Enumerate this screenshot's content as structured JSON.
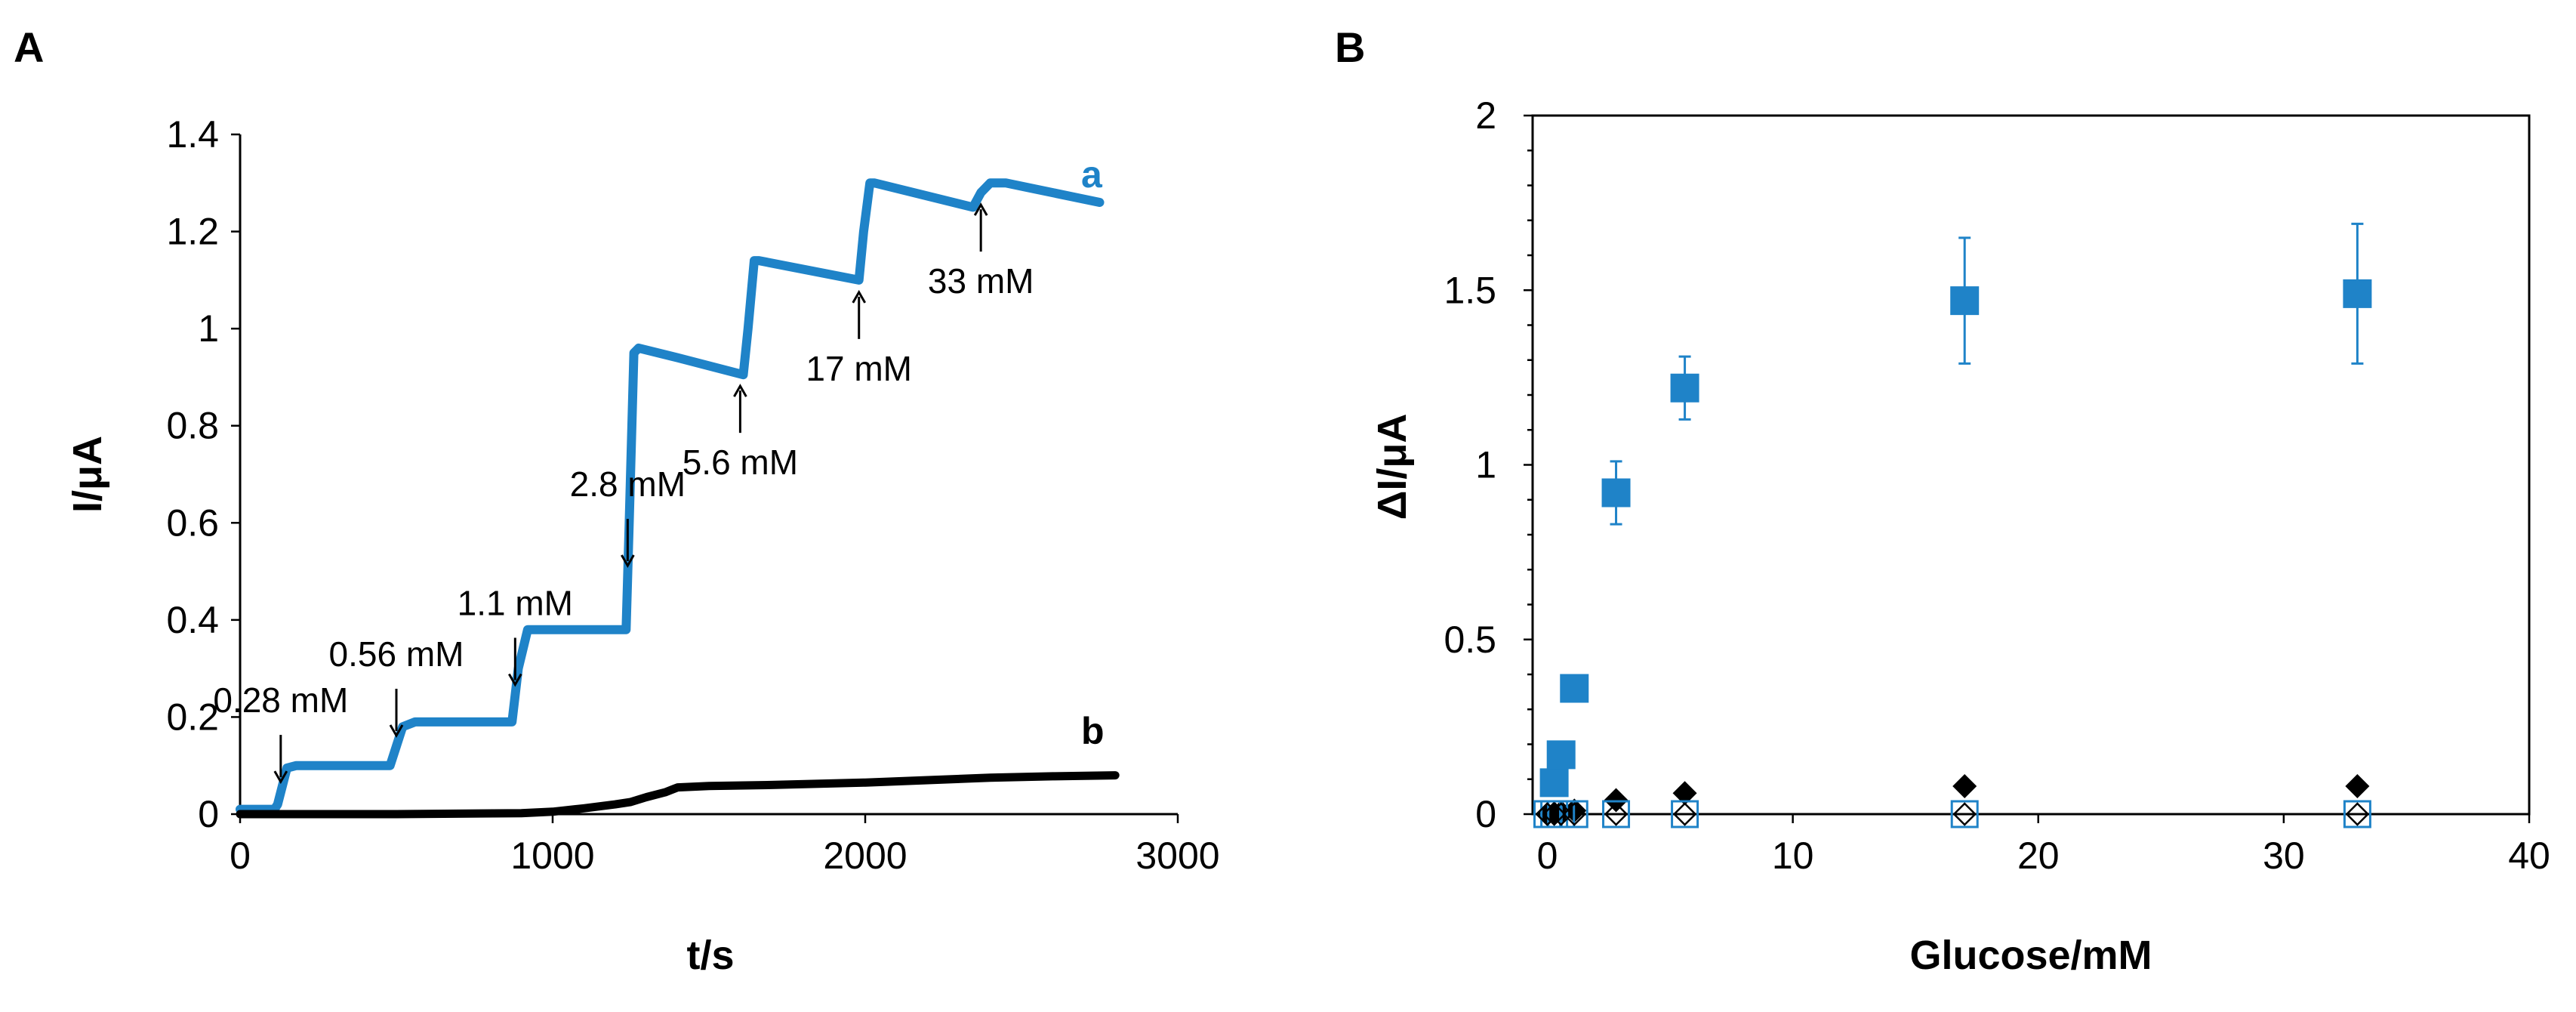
{
  "chart_data": [
    {
      "type": "line",
      "panel_label": "A",
      "xlabel": "t/s",
      "ylabel": "I/μA",
      "xlim": [
        0,
        3000
      ],
      "ylim": [
        0,
        1.4
      ],
      "x_ticks": [
        0,
        1000,
        2000,
        3000
      ],
      "x_tick_labels": [
        "0",
        "1000",
        "2000",
        "3000"
      ],
      "y_ticks": [
        0,
        0.2,
        0.4,
        0.6,
        0.8,
        1.0,
        1.2,
        1.4
      ],
      "y_tick_labels": [
        "0",
        "0.2",
        "0.4",
        "0.6",
        "0.8",
        "1",
        "1.2",
        "1.4"
      ],
      "grid": false,
      "series": [
        {
          "name": "a",
          "color": "#1f83c8",
          "points": [
            [
              0,
              0.01
            ],
            [
              110,
              0.01
            ],
            [
              120,
              0.02
            ],
            [
              150,
              0.095
            ],
            [
              180,
              0.1
            ],
            [
              400,
              0.1
            ],
            [
              480,
              0.1
            ],
            [
              500,
              0.14
            ],
            [
              520,
              0.18
            ],
            [
              560,
              0.19
            ],
            [
              870,
              0.19
            ],
            [
              890,
              0.3
            ],
            [
              920,
              0.38
            ],
            [
              950,
              0.38
            ],
            [
              1235,
              0.38
            ],
            [
              1245,
              0.6
            ],
            [
              1260,
              0.95
            ],
            [
              1275,
              0.96
            ],
            [
              1400,
              0.94
            ],
            [
              1610,
              0.905
            ],
            [
              1625,
              1.0
            ],
            [
              1645,
              1.14
            ],
            [
              1660,
              1.14
            ],
            [
              1980,
              1.1
            ],
            [
              1995,
              1.2
            ],
            [
              2015,
              1.3
            ],
            [
              2030,
              1.3
            ],
            [
              2345,
              1.25
            ],
            [
              2370,
              1.28
            ],
            [
              2400,
              1.3
            ],
            [
              2450,
              1.3
            ],
            [
              2750,
              1.26
            ]
          ]
        },
        {
          "name": "b",
          "color": "#000000",
          "points": [
            [
              0,
              0
            ],
            [
              500,
              0
            ],
            [
              900,
              0.002
            ],
            [
              1000,
              0.005
            ],
            [
              1100,
              0.012
            ],
            [
              1200,
              0.02
            ],
            [
              1250,
              0.025
            ],
            [
              1300,
              0.035
            ],
            [
              1360,
              0.045
            ],
            [
              1400,
              0.055
            ],
            [
              1500,
              0.058
            ],
            [
              1700,
              0.06
            ],
            [
              2000,
              0.065
            ],
            [
              2200,
              0.07
            ],
            [
              2400,
              0.075
            ],
            [
              2600,
              0.078
            ],
            [
              2800,
              0.08
            ]
          ]
        }
      ],
      "annotations": [
        {
          "text": "0.28 mM",
          "x": 130,
          "arrow": "down"
        },
        {
          "text": "0.56 mM",
          "x": 500,
          "arrow": "down"
        },
        {
          "text": "1.1 mM",
          "x": 880,
          "arrow": "down"
        },
        {
          "text": "2.8 mM",
          "x": 1240,
          "arrow": "down"
        },
        {
          "text": "5.6 mM",
          "x": 1600,
          "arrow": "up"
        },
        {
          "text": "17 mM",
          "x": 1980,
          "arrow": "up"
        },
        {
          "text": "33 mM",
          "x": 2370,
          "arrow": "up"
        }
      ]
    },
    {
      "type": "scatter",
      "panel_label": "B",
      "xlabel": "Glucose/mM",
      "ylabel": "ΔI/μA",
      "xlim": [
        -0.6,
        40
      ],
      "ylim": [
        0,
        2
      ],
      "x_ticks": [
        0,
        10,
        20,
        30,
        40
      ],
      "x_tick_labels": [
        "0",
        "10",
        "20",
        "30",
        "40"
      ],
      "y_ticks": [
        0,
        0.5,
        1.0,
        1.5,
        2.0
      ],
      "y_tick_labels": [
        "0",
        "0.5",
        "1",
        "1.5",
        "2"
      ],
      "grid": false,
      "series": [
        {
          "marker": "filled-square",
          "color": "#1f83c8",
          "x": [
            0.28,
            0.56,
            1.1,
            2.8,
            5.6,
            17,
            33
          ],
          "y": [
            0.09,
            0.17,
            0.36,
            0.92,
            1.22,
            1.47,
            1.49
          ],
          "error": [
            0,
            0,
            0,
            0.09,
            0.09,
            0.18,
            0.2
          ]
        },
        {
          "marker": "filled-diamond",
          "color": "#000000",
          "x": [
            0,
            0.28,
            0.56,
            1.1,
            2.8,
            5.6,
            17,
            33
          ],
          "y": [
            0,
            0.002,
            0.005,
            0.01,
            0.04,
            0.06,
            0.08,
            0.08
          ]
        },
        {
          "marker": "open-square",
          "color": "#1f83c8",
          "x": [
            0,
            0.28,
            0.56,
            1.1,
            2.8,
            5.6,
            17,
            33
          ],
          "y": [
            0,
            0,
            0,
            0,
            0,
            0,
            0,
            0
          ]
        },
        {
          "marker": "open-diamond",
          "color": "#000000",
          "x": [
            0,
            0.28,
            0.56,
            1.1,
            2.8,
            5.6,
            17,
            33
          ],
          "y": [
            0,
            0,
            0,
            0,
            0,
            0,
            0,
            0
          ]
        }
      ]
    }
  ]
}
